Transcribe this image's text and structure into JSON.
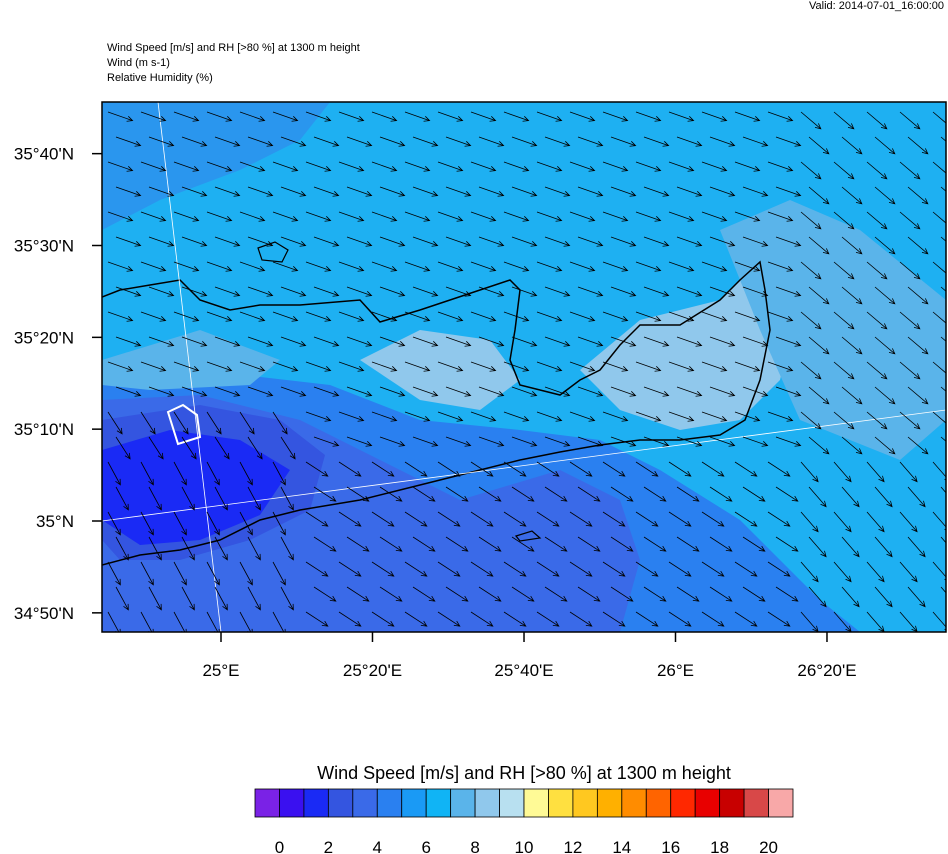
{
  "header": {
    "valid": "Valid: 2014-07-01_16:00:00",
    "title_lines": [
      "Wind Speed [m/s] and RH [>80 %] at 1300 m height",
      "Wind   (m s-1)",
      "Relative Humidity   (%)"
    ]
  },
  "map": {
    "lat_ticks": [
      {
        "value": 35.6667,
        "label": "35°40'N"
      },
      {
        "value": 35.5,
        "label": "35°30'N"
      },
      {
        "value": 35.3333,
        "label": "35°20'N"
      },
      {
        "value": 35.1667,
        "label": "35°10'N"
      },
      {
        "value": 35,
        "label": "35°N"
      },
      {
        "value": 34.8333,
        "label": "34°50'N"
      }
    ],
    "lon_ticks": [
      {
        "value": 25,
        "label": "25°E"
      },
      {
        "value": 25.3333,
        "label": "25°20'E"
      },
      {
        "value": 25.6667,
        "label": "25°40'E"
      },
      {
        "value": 26,
        "label": "26°E"
      },
      {
        "value": 26.3333,
        "label": "26°20'E"
      }
    ]
  },
  "colorbar": {
    "title": "Wind Speed [m/s] and RH [>80 %] at 1300 m height",
    "ticks": [
      0,
      2,
      4,
      6,
      8,
      10,
      12,
      14,
      16,
      18,
      20
    ],
    "colors": [
      "#7a22e6",
      "#3a10f0",
      "#1a2af5",
      "#3455e0",
      "#3a6ae8",
      "#2a80f0",
      "#1a9af5",
      "#10b4f5",
      "#5ab4ea",
      "#90c8ec",
      "#b8e0f0",
      "#fffa96",
      "#ffe040",
      "#ffc820",
      "#ffb000",
      "#ff8c00",
      "#ff6400",
      "#ff2800",
      "#e80000",
      "#c80000",
      "#d84848",
      "#f8a8a8"
    ]
  }
}
